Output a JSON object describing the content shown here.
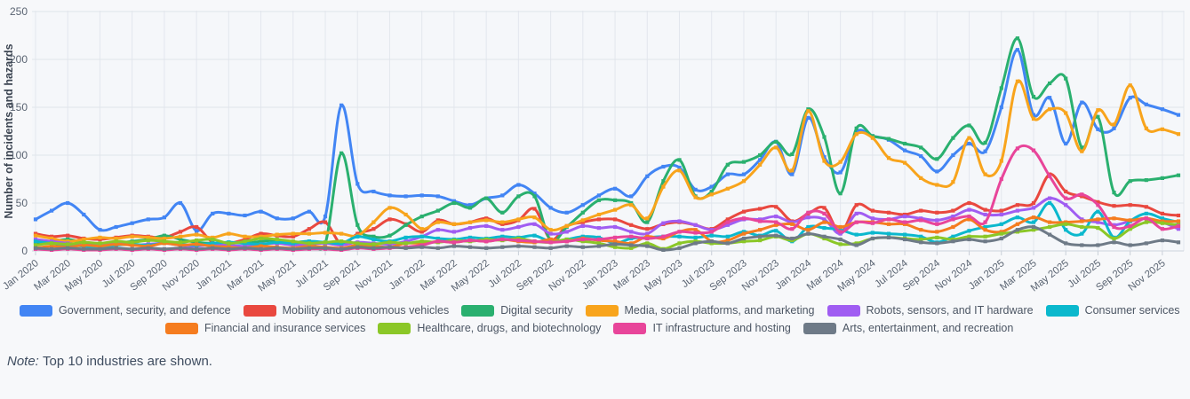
{
  "page": {
    "background": "#f7f8fa"
  },
  "note": {
    "label": "Note:",
    "text": "Top 10 industries are shown."
  },
  "chart_data": {
    "type": "line",
    "title": "",
    "xlabel": "",
    "ylabel": "Number of incidents and hazards",
    "ylim": [
      0,
      250
    ],
    "yticks": [
      0,
      50,
      100,
      150,
      200,
      250
    ],
    "grid": true,
    "legend_position": "bottom",
    "n_points": 72,
    "x_start": "Jan 2020",
    "x_end": "Dec 2025",
    "x_tick_labels": [
      "Jan 2020",
      "Mar 2020",
      "May 2020",
      "Jul 2020",
      "Sep 2020",
      "Nov 2020",
      "Jan 2021",
      "Mar 2021",
      "May 2021",
      "Jul 2021",
      "Sep 2021",
      "Nov 2021",
      "Jan 2022",
      "Mar 2022",
      "May 2022",
      "Jul 2022",
      "Sep 2022",
      "Nov 2022",
      "Jan 2023",
      "Mar 2023",
      "May 2023",
      "Jul 2023",
      "Sep 2023",
      "Nov 2023",
      "Jan 2024",
      "Mar 2024",
      "May 2024",
      "Jul 2024",
      "Sep 2024",
      "Nov 2024",
      "Jan 2025",
      "Mar 2025",
      "May 2025",
      "Jul 2025",
      "Sep 2025",
      "Nov 2025"
    ],
    "legend_rows": [
      6,
      4
    ],
    "series": [
      {
        "name": "Government, security, and defence",
        "color": "#4285f4",
        "values": [
          33,
          42,
          50,
          38,
          22,
          25,
          29,
          33,
          35,
          50,
          21,
          39,
          39,
          37,
          41,
          34,
          34,
          41,
          36,
          152,
          70,
          62,
          58,
          57,
          58,
          57,
          52,
          48,
          55,
          58,
          69,
          60,
          45,
          40,
          48,
          58,
          65,
          57,
          78,
          88,
          87,
          64,
          67,
          80,
          80,
          95,
          114,
          80,
          139,
          98,
          82,
          124,
          120,
          116,
          105,
          99,
          83,
          100,
          112,
          104,
          150,
          210,
          142,
          160,
          112,
          155,
          127,
          128,
          160,
          153,
          148,
          142
        ]
      },
      {
        "name": "Mobility and autonomous vehicles",
        "color": "#e9483f",
        "values": [
          18,
          15,
          16,
          13,
          12,
          14,
          16,
          15,
          14,
          20,
          25,
          9,
          8,
          12,
          18,
          16,
          15,
          23,
          30,
          7,
          18,
          23,
          33,
          28,
          20,
          32,
          28,
          30,
          34,
          28,
          32,
          44,
          12,
          26,
          30,
          33,
          33,
          27,
          23,
          28,
          30,
          27,
          23,
          33,
          41,
          44,
          46,
          31,
          39,
          45,
          19,
          48,
          42,
          40,
          38,
          42,
          40,
          42,
          50,
          43,
          42,
          48,
          50,
          80,
          62,
          57,
          51,
          47,
          48,
          46,
          39,
          37
        ]
      },
      {
        "name": "Digital security",
        "color": "#2ab06f",
        "values": [
          8,
          10,
          12,
          9,
          7,
          8,
          10,
          12,
          16,
          12,
          9,
          8,
          9,
          8,
          10,
          11,
          9,
          10,
          8,
          102,
          27,
          15,
          16,
          27,
          36,
          42,
          50,
          45,
          55,
          40,
          57,
          57,
          11,
          25,
          40,
          53,
          53,
          50,
          30,
          73,
          95,
          57,
          62,
          90,
          93,
          100,
          114,
          101,
          148,
          119,
          60,
          128,
          120,
          117,
          112,
          108,
          96,
          118,
          131,
          113,
          170,
          222,
          161,
          175,
          180,
          108,
          140,
          61,
          73,
          74,
          76,
          79
        ]
      },
      {
        "name": "Media, social platforms, and marketing",
        "color": "#f8a41c",
        "values": [
          16,
          13,
          10,
          12,
          14,
          13,
          15,
          14,
          13,
          15,
          17,
          14,
          18,
          15,
          15,
          17,
          18,
          18,
          19,
          18,
          16,
          30,
          45,
          38,
          23,
          30,
          28,
          30,
          32,
          30,
          33,
          35,
          22,
          26,
          32,
          38,
          43,
          48,
          34,
          67,
          84,
          56,
          59,
          65,
          73,
          90,
          108,
          84,
          146,
          94,
          93,
          122,
          118,
          97,
          92,
          76,
          69,
          72,
          118,
          80,
          94,
          177,
          138,
          148,
          144,
          104,
          147,
          132,
          173,
          128,
          127,
          122
        ]
      },
      {
        "name": "Robots, sensors, and IT hardware",
        "color": "#a05df2",
        "values": [
          12,
          10,
          8,
          6,
          7,
          8,
          6,
          7,
          8,
          6,
          5,
          7,
          6,
          5,
          7,
          8,
          6,
          7,
          8,
          6,
          9,
          8,
          7,
          10,
          15,
          22,
          20,
          24,
          26,
          22,
          25,
          28,
          18,
          20,
          26,
          24,
          25,
          20,
          18,
          29,
          31,
          27,
          22,
          27,
          33,
          33,
          36,
          30,
          35,
          33,
          18,
          39,
          34,
          33,
          36,
          34,
          32,
          36,
          43,
          38,
          38,
          42,
          45,
          55,
          48,
          33,
          30,
          27,
          31,
          34,
          30,
          23
        ]
      },
      {
        "name": "Consumer services",
        "color": "#0bb8cd",
        "values": [
          10,
          8,
          6,
          5,
          4,
          6,
          7,
          6,
          8,
          7,
          6,
          8,
          9,
          8,
          7,
          9,
          8,
          10,
          9,
          8,
          15,
          12,
          10,
          14,
          15,
          13,
          12,
          14,
          13,
          15,
          14,
          16,
          10,
          12,
          15,
          14,
          8,
          13,
          14,
          15,
          15,
          14,
          16,
          15,
          20,
          16,
          21,
          10,
          25,
          24,
          22,
          17,
          19,
          18,
          17,
          15,
          9,
          15,
          21,
          25,
          28,
          35,
          30,
          50,
          22,
          18,
          41,
          14,
          31,
          39,
          34,
          30
        ]
      },
      {
        "name": "Financial and insurance services",
        "color": "#f57c1f",
        "values": [
          3,
          5,
          4,
          6,
          5,
          7,
          6,
          5,
          8,
          6,
          7,
          5,
          4,
          3,
          5,
          4,
          3,
          5,
          4,
          3,
          6,
          5,
          4,
          8,
          8,
          10,
          9,
          11,
          10,
          12,
          10,
          9,
          12,
          10,
          13,
          11,
          10,
          8,
          15,
          13,
          20,
          22,
          10,
          11,
          18,
          22,
          27,
          28,
          22,
          30,
          25,
          30,
          30,
          28,
          28,
          22,
          20,
          25,
          33,
          22,
          20,
          28,
          35,
          30,
          30,
          31,
          33,
          34,
          32,
          34,
          31,
          31
        ]
      },
      {
        "name": "Healthcare, drugs, and biotechnology",
        "color": "#8bc727",
        "values": [
          6,
          8,
          7,
          9,
          8,
          10,
          9,
          11,
          10,
          9,
          11,
          12,
          8,
          10,
          13,
          12,
          10,
          8,
          9,
          10,
          8,
          7,
          9,
          8,
          10,
          9,
          11,
          10,
          12,
          11,
          13,
          10,
          9,
          12,
          10,
          8,
          4,
          3,
          8,
          2,
          8,
          10,
          8,
          8,
          10,
          11,
          15,
          11,
          18,
          13,
          7,
          8,
          13,
          14,
          13,
          12,
          14,
          12,
          15,
          15,
          18,
          20,
          22,
          25,
          28,
          25,
          24,
          13,
          23,
          30,
          29,
          27
        ]
      },
      {
        "name": "IT infrastructure and hosting",
        "color": "#e8459a",
        "values": [
          2,
          1,
          2,
          1,
          1,
          2,
          1,
          2,
          1,
          2,
          1,
          2,
          1,
          2,
          1,
          2,
          1,
          2,
          2,
          1,
          3,
          2,
          3,
          4,
          6,
          10,
          9,
          11,
          10,
          12,
          11,
          10,
          9,
          10,
          12,
          12,
          14,
          15,
          13,
          15,
          20,
          19,
          20,
          30,
          34,
          31,
          30,
          23,
          40,
          39,
          20,
          30,
          29,
          33,
          30,
          32,
          28,
          33,
          36,
          30,
          75,
          107,
          105,
          78,
          55,
          59,
          48,
          25,
          26,
          34,
          23,
          26
        ]
      },
      {
        "name": "Arts, entertainment, and recreation",
        "color": "#6e7a87",
        "values": [
          3,
          2,
          3,
          2,
          2,
          3,
          2,
          3,
          2,
          3,
          2,
          3,
          2,
          3,
          2,
          3,
          2,
          3,
          3,
          2,
          4,
          3,
          4,
          3,
          4,
          3,
          5,
          4,
          3,
          4,
          5,
          4,
          3,
          5,
          4,
          5,
          7,
          6,
          5,
          1,
          3,
          8,
          10,
          8,
          13,
          15,
          16,
          13,
          18,
          15,
          12,
          6,
          13,
          14,
          12,
          9,
          8,
          10,
          12,
          10,
          13,
          22,
          25,
          17,
          8,
          6,
          6,
          9,
          6,
          8,
          11,
          9
        ]
      }
    ]
  }
}
